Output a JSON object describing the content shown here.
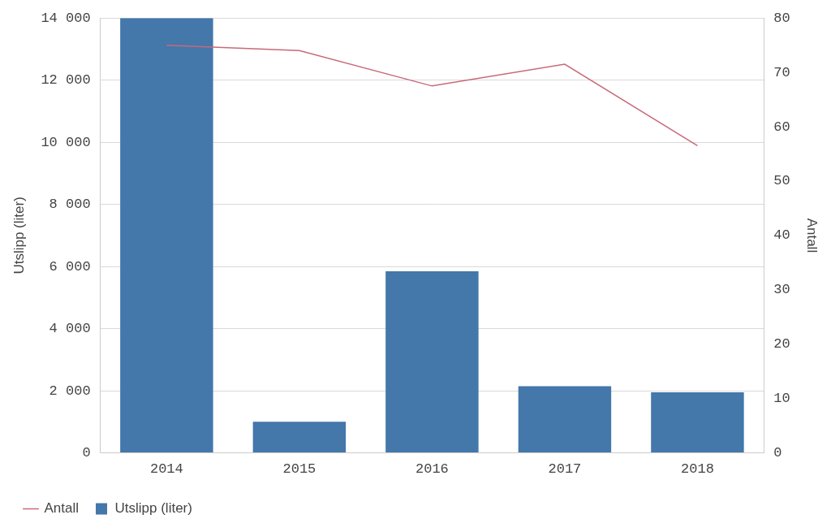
{
  "chart_data": {
    "type": "bar",
    "categories": [
      "2014",
      "2015",
      "2016",
      "2017",
      "2018"
    ],
    "series": [
      {
        "name": "Utslipp (liter)",
        "type": "bar",
        "color": "#4477aa",
        "axis": "y",
        "values": [
          14000,
          1000,
          5850,
          2150,
          1950
        ]
      },
      {
        "name": "Antall",
        "type": "line",
        "color": "#c8697a",
        "axis": "y2",
        "values": [
          75,
          74,
          67.5,
          71.5,
          56.5
        ]
      }
    ],
    "y_label": "Utslipp (liter)",
    "y2_label": "Antall",
    "ylim": [
      0,
      14000
    ],
    "yticks": [
      0,
      {
        "value": 2000,
        "label": "2 000"
      },
      {
        "value": 4000,
        "label": "4 000"
      },
      {
        "value": 6000,
        "label": "6 000"
      },
      {
        "value": 8000,
        "label": "8 000"
      },
      {
        "value": 10000,
        "label": "10 000"
      },
      {
        "value": 12000,
        "label": "12 000"
      },
      {
        "value": 14000,
        "label": "14 000"
      }
    ],
    "y2lim": [
      0,
      80
    ],
    "y2ticks": [
      0,
      10,
      20,
      30,
      40,
      50,
      60,
      70,
      80
    ],
    "grid": true,
    "legend": "bottom-left"
  }
}
